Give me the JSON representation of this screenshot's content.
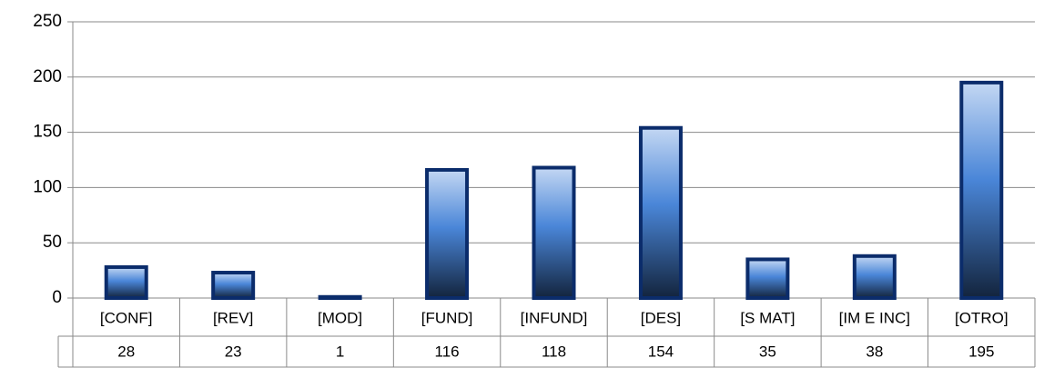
{
  "chart_data": {
    "type": "bar",
    "categories": [
      "[CONF]",
      "[REV]",
      "[MOD]",
      "[FUND]",
      "[INFUND]",
      "[DES]",
      "[S MAT]",
      "[IM E INC]",
      "[OTRO]"
    ],
    "values": [
      28,
      23,
      1,
      116,
      118,
      154,
      35,
      38,
      195
    ],
    "color": "#4a86d8",
    "border_color": "#0b2c6b",
    "ylim": [
      0,
      250
    ],
    "yticks": [
      0,
      50,
      100,
      150,
      200,
      250
    ],
    "grid": true,
    "data_table": true
  }
}
